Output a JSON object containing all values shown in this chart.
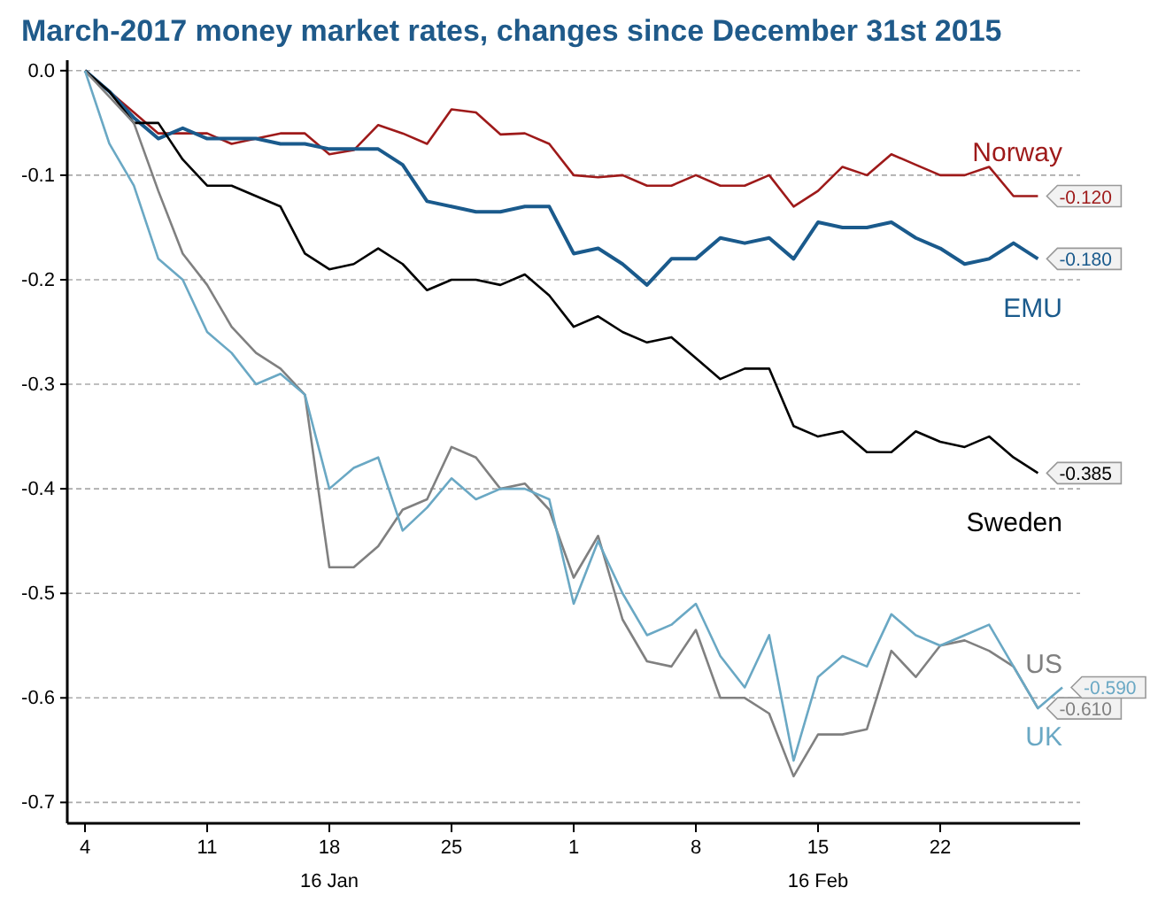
{
  "chart_data": {
    "type": "line",
    "title": "March-2017 money market rates, changes since December 31st 2015",
    "categories": [
      "4",
      null,
      null,
      null,
      null,
      "11",
      null,
      null,
      null,
      null,
      "18\n16 Jan",
      null,
      null,
      null,
      null,
      "25",
      null,
      null,
      null,
      null,
      "1",
      null,
      null,
      null,
      null,
      "8",
      null,
      null,
      null,
      null,
      "15\n16 Feb",
      null,
      null,
      null,
      null,
      "22",
      null,
      null,
      null,
      null,
      null
    ],
    "series": [
      {
        "name": "Norway",
        "color": "#9e1a1a",
        "values": [
          0,
          -0.02,
          -0.04,
          -0.06,
          -0.06,
          -0.06,
          -0.07,
          -0.065,
          -0.06,
          -0.06,
          -0.08,
          -0.076,
          -0.052,
          -0.06,
          -0.07,
          -0.037,
          -0.04,
          -0.061,
          -0.06,
          -0.07,
          -0.1,
          -0.102,
          -0.1,
          -0.11,
          -0.11,
          -0.1,
          -0.11,
          -0.11,
          -0.1,
          -0.13,
          -0.115,
          -0.092,
          -0.1,
          -0.08,
          -0.09,
          -0.1,
          -0.1,
          -0.092,
          -0.12,
          -0.12,
          null
        ],
        "value_labels": [
          null,
          null,
          null,
          null,
          null,
          null,
          null,
          null,
          null,
          null,
          null,
          null,
          null,
          null,
          null,
          null,
          null,
          null,
          null,
          null,
          null,
          null,
          null,
          null,
          null,
          null,
          null,
          null,
          null,
          null,
          null,
          null,
          null,
          null,
          null,
          null,
          null,
          null,
          null,
          "-0.120",
          null
        ]
      },
      {
        "name": "EMU",
        "color": "#1a5a8c",
        "values": [
          0,
          -0.02,
          -0.045,
          -0.065,
          -0.055,
          -0.065,
          -0.065,
          -0.065,
          -0.07,
          -0.07,
          -0.075,
          -0.075,
          -0.075,
          -0.09,
          -0.125,
          -0.13,
          -0.135,
          -0.135,
          -0.13,
          -0.13,
          -0.175,
          -0.17,
          -0.185,
          -0.205,
          -0.18,
          -0.18,
          -0.16,
          -0.165,
          -0.16,
          -0.18,
          -0.145,
          -0.15,
          -0.15,
          -0.145,
          -0.16,
          -0.17,
          -0.185,
          -0.18,
          -0.165,
          -0.18,
          null
        ],
        "value_labels": [
          null,
          null,
          null,
          null,
          null,
          null,
          null,
          null,
          null,
          null,
          null,
          null,
          null,
          null,
          null,
          null,
          null,
          null,
          null,
          null,
          null,
          null,
          null,
          null,
          null,
          null,
          null,
          null,
          null,
          null,
          null,
          null,
          null,
          null,
          null,
          null,
          null,
          null,
          null,
          "-0.180",
          null
        ]
      },
      {
        "name": "Sweden",
        "color": "#000000",
        "values": [
          0,
          -0.02,
          -0.05,
          -0.05,
          -0.085,
          -0.11,
          -0.11,
          -0.12,
          -0.13,
          -0.175,
          -0.19,
          -0.185,
          -0.17,
          -0.185,
          -0.21,
          -0.2,
          -0.2,
          -0.205,
          -0.195,
          -0.215,
          -0.245,
          -0.235,
          -0.25,
          -0.26,
          -0.255,
          -0.275,
          -0.295,
          -0.285,
          -0.285,
          -0.34,
          -0.35,
          -0.345,
          -0.365,
          -0.365,
          -0.345,
          -0.355,
          -0.36,
          -0.35,
          -0.37,
          -0.385,
          null
        ],
        "value_labels": [
          null,
          null,
          null,
          null,
          null,
          null,
          null,
          null,
          null,
          null,
          null,
          null,
          null,
          null,
          null,
          null,
          null,
          null,
          null,
          null,
          null,
          null,
          null,
          null,
          null,
          null,
          null,
          null,
          null,
          null,
          null,
          null,
          null,
          null,
          null,
          null,
          null,
          null,
          null,
          "-0.385",
          null
        ]
      },
      {
        "name": "US",
        "color": "#808080",
        "values": [
          0,
          -0.025,
          -0.05,
          -0.115,
          -0.175,
          -0.205,
          -0.245,
          -0.27,
          -0.285,
          -0.31,
          -0.475,
          -0.475,
          -0.455,
          -0.42,
          -0.41,
          -0.36,
          -0.37,
          -0.4,
          -0.395,
          -0.42,
          -0.485,
          -0.445,
          -0.525,
          -0.565,
          -0.57,
          -0.535,
          -0.6,
          -0.6,
          -0.615,
          -0.675,
          -0.635,
          -0.635,
          -0.63,
          -0.555,
          -0.58,
          -0.55,
          -0.545,
          -0.555,
          -0.57,
          -0.61,
          null
        ],
        "value_labels": [
          null,
          null,
          null,
          null,
          null,
          null,
          null,
          null,
          null,
          null,
          null,
          null,
          null,
          null,
          null,
          null,
          null,
          null,
          null,
          null,
          null,
          null,
          null,
          null,
          null,
          null,
          null,
          null,
          null,
          null,
          null,
          null,
          null,
          null,
          null,
          null,
          null,
          null,
          null,
          "-0.610",
          null
        ]
      },
      {
        "name": "UK",
        "color": "#6aa8c4",
        "values": [
          0,
          -0.07,
          -0.11,
          -0.18,
          -0.2,
          -0.25,
          -0.27,
          -0.3,
          -0.29,
          -0.31,
          -0.4,
          -0.38,
          -0.37,
          -0.44,
          -0.418,
          -0.39,
          -0.41,
          -0.4,
          -0.4,
          -0.41,
          -0.51,
          -0.45,
          -0.5,
          -0.54,
          -0.53,
          -0.51,
          -0.56,
          -0.59,
          -0.54,
          -0.66,
          -0.58,
          -0.56,
          -0.57,
          -0.52,
          -0.54,
          -0.55,
          -0.54,
          -0.53,
          -0.57,
          -0.61,
          -0.59
        ],
        "value_labels": [
          null,
          null,
          null,
          null,
          null,
          null,
          null,
          null,
          null,
          null,
          null,
          null,
          null,
          null,
          null,
          null,
          null,
          null,
          null,
          null,
          null,
          null,
          null,
          null,
          null,
          null,
          null,
          null,
          null,
          null,
          null,
          null,
          null,
          null,
          null,
          null,
          null,
          null,
          null,
          null,
          "-0.590"
        ]
      }
    ],
    "ylim": [
      -0.72,
      0.01
    ],
    "yticks": [
      {
        "value": 0,
        "label": "0.0"
      },
      -0.1,
      -0.2,
      -0.3,
      -0.4,
      -0.5,
      -0.6,
      -0.7
    ],
    "grid": "y",
    "legend": false,
    "line_style": "solid",
    "marker": "none"
  }
}
